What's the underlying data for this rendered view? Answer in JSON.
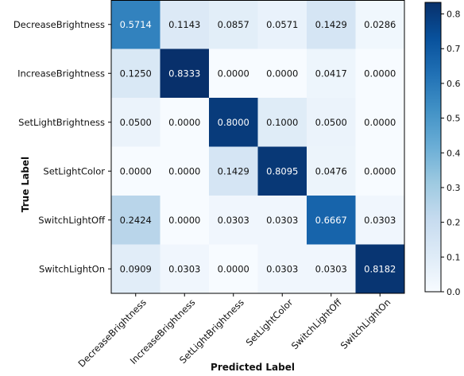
{
  "chart_data": {
    "type": "heatmap",
    "title": "",
    "xlabel": "Predicted Label",
    "ylabel": "True Label",
    "x_categories": [
      "DecreaseBrightness",
      "IncreaseBrightness",
      "SetLightBrightness",
      "SetLightColor",
      "SwitchLightOff",
      "SwitchLightOn"
    ],
    "y_categories": [
      "DecreaseBrightness",
      "IncreaseBrightness",
      "SetLightBrightness",
      "SetLightColor",
      "SwitchLightOff",
      "SwitchLightOn"
    ],
    "values": [
      [
        0.5714,
        0.1143,
        0.0857,
        0.0571,
        0.1429,
        0.0286
      ],
      [
        0.125,
        0.8333,
        0.0,
        0.0,
        0.0417,
        0.0
      ],
      [
        0.05,
        0.0,
        0.8,
        0.1,
        0.05,
        0.0
      ],
      [
        0.0,
        0.0,
        0.1429,
        0.8095,
        0.0476,
        0.0
      ],
      [
        0.2424,
        0.0,
        0.0303,
        0.0303,
        0.6667,
        0.0303
      ],
      [
        0.0909,
        0.0303,
        0.0,
        0.0303,
        0.0303,
        0.8182
      ]
    ],
    "value_labels": [
      [
        "0.5714",
        "0.1143",
        "0.0857",
        "0.0571",
        "0.1429",
        "0.0286"
      ],
      [
        "0.1250",
        "0.8333",
        "0.0000",
        "0.0000",
        "0.0417",
        "0.0000"
      ],
      [
        "0.0500",
        "0.0000",
        "0.8000",
        "0.1000",
        "0.0500",
        "0.0000"
      ],
      [
        "0.0000",
        "0.0000",
        "0.1429",
        "0.8095",
        "0.0476",
        "0.0000"
      ],
      [
        "0.2424",
        "0.0000",
        "0.0303",
        "0.0303",
        "0.6667",
        "0.0303"
      ],
      [
        "0.0909",
        "0.0303",
        "0.0000",
        "0.0303",
        "0.0303",
        "0.8182"
      ]
    ],
    "colormap": "Blues",
    "colormap_stops": [
      "#f7fbff",
      "#deebf7",
      "#c6dbef",
      "#9ecae1",
      "#6baed6",
      "#4292c6",
      "#2171b5",
      "#08519c",
      "#08306b"
    ],
    "color_range": [
      0.0,
      0.8333
    ],
    "colorbar_ticks": [
      "0.0",
      "0.1",
      "0.2",
      "0.3",
      "0.4",
      "0.5",
      "0.6",
      "0.7",
      "0.8"
    ],
    "colorbar_tick_values": [
      0.0,
      0.1,
      0.2,
      0.3,
      0.4,
      0.5,
      0.6,
      0.7,
      0.8
    ],
    "grid": false,
    "annotations_on_cells": true
  }
}
